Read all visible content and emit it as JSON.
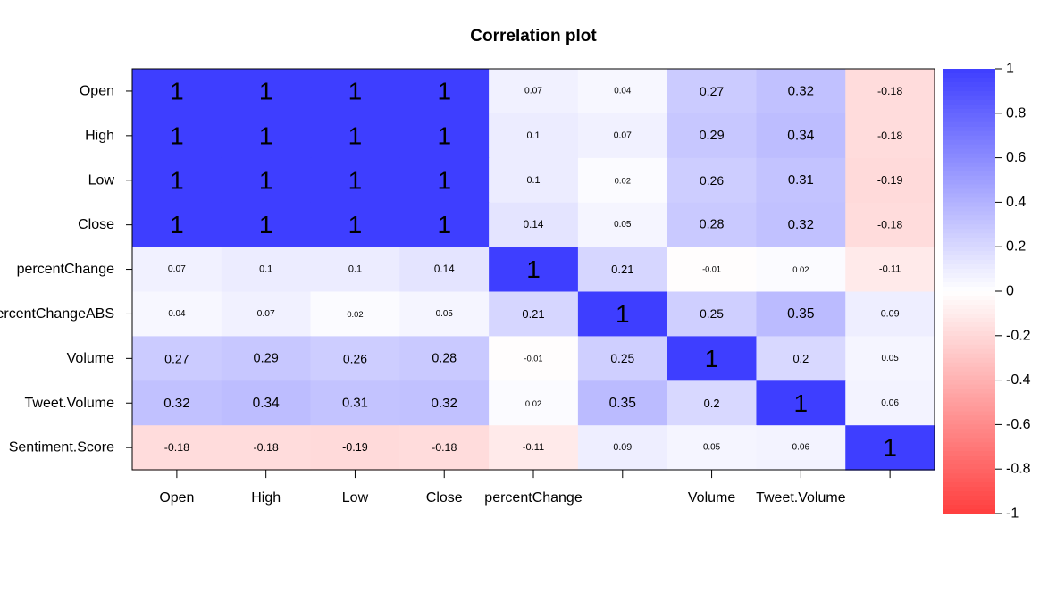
{
  "chart_data": {
    "type": "heatmap",
    "title": "Correlation plot",
    "xlabel": "",
    "ylabel": "",
    "rows": [
      "Open",
      "High",
      "Low",
      "Close",
      "percentChange",
      "percentChangeABS",
      "Volume",
      "Tweet.Volume",
      "Sentiment.Score"
    ],
    "columns": [
      "Open",
      "High",
      "Low",
      "Close",
      "percentChange",
      "",
      "Volume",
      "Tweet.Volume",
      ""
    ],
    "values": [
      [
        1,
        1,
        1,
        1,
        0.07,
        0.04,
        0.27,
        0.32,
        -0.18
      ],
      [
        1,
        1,
        1,
        1,
        0.1,
        0.07,
        0.29,
        0.34,
        -0.18
      ],
      [
        1,
        1,
        1,
        1,
        0.1,
        0.02,
        0.26,
        0.31,
        -0.19
      ],
      [
        1,
        1,
        1,
        1,
        0.14,
        0.05,
        0.28,
        0.32,
        -0.18
      ],
      [
        0.07,
        0.1,
        0.1,
        0.14,
        1,
        0.21,
        -0.01,
        0.02,
        -0.11
      ],
      [
        0.04,
        0.07,
        0.02,
        0.05,
        0.21,
        1,
        0.25,
        0.35,
        0.09
      ],
      [
        0.27,
        0.29,
        0.26,
        0.28,
        -0.01,
        0.25,
        1,
        0.2,
        0.05
      ],
      [
        0.32,
        0.34,
        0.31,
        0.32,
        0.02,
        0.35,
        0.2,
        1,
        0.06
      ],
      [
        -0.18,
        -0.18,
        -0.19,
        -0.18,
        -0.11,
        0.09,
        0.05,
        0.06,
        1
      ]
    ],
    "value_range": [
      -1,
      1
    ],
    "legend": {
      "placement": "right",
      "ticks": [
        "1",
        "0.8",
        "0.6",
        "0.4",
        "0.2",
        "0",
        "-0.2",
        "-0.4",
        "-0.6",
        "-0.8",
        "-1"
      ]
    },
    "colors": {
      "positive": "#3e3eff",
      "neutral": "#ffffff",
      "negative": "#ff3e3e"
    },
    "grid": false
  }
}
